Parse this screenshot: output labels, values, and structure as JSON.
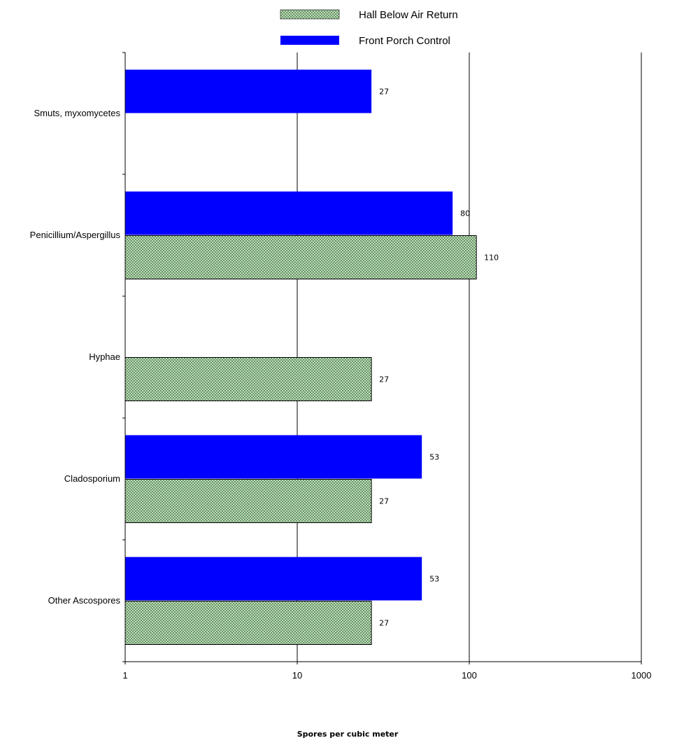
{
  "chart_data": {
    "type": "bar",
    "orientation": "horizontal",
    "title": "",
    "xlabel": "Spores per cubic meter",
    "ylabel": "",
    "x_scale": "log",
    "xlim": [
      1,
      1000
    ],
    "x_ticks": [
      "1",
      "10",
      "100",
      "1000"
    ],
    "grid": "vertical major gridlines",
    "legend_position": "top",
    "categories": [
      "Smuts, myxomycetes",
      "Penicillium/Aspergillus",
      "Hyphae",
      "Cladosporium",
      "Other Ascospores"
    ],
    "series": [
      {
        "name": "Hall Below Air Return",
        "color": "#cfe3c9",
        "pattern": "green crosshatch",
        "values": [
          null,
          110,
          27,
          27,
          27
        ],
        "labels": [
          "",
          "110",
          "27",
          "27",
          "27"
        ]
      },
      {
        "name": "Front Porch Control",
        "color": "#0000ff",
        "pattern": "solid",
        "values": [
          27,
          80,
          null,
          53,
          53
        ],
        "labels": [
          "27",
          "80",
          "",
          "53",
          "53"
        ]
      }
    ]
  }
}
